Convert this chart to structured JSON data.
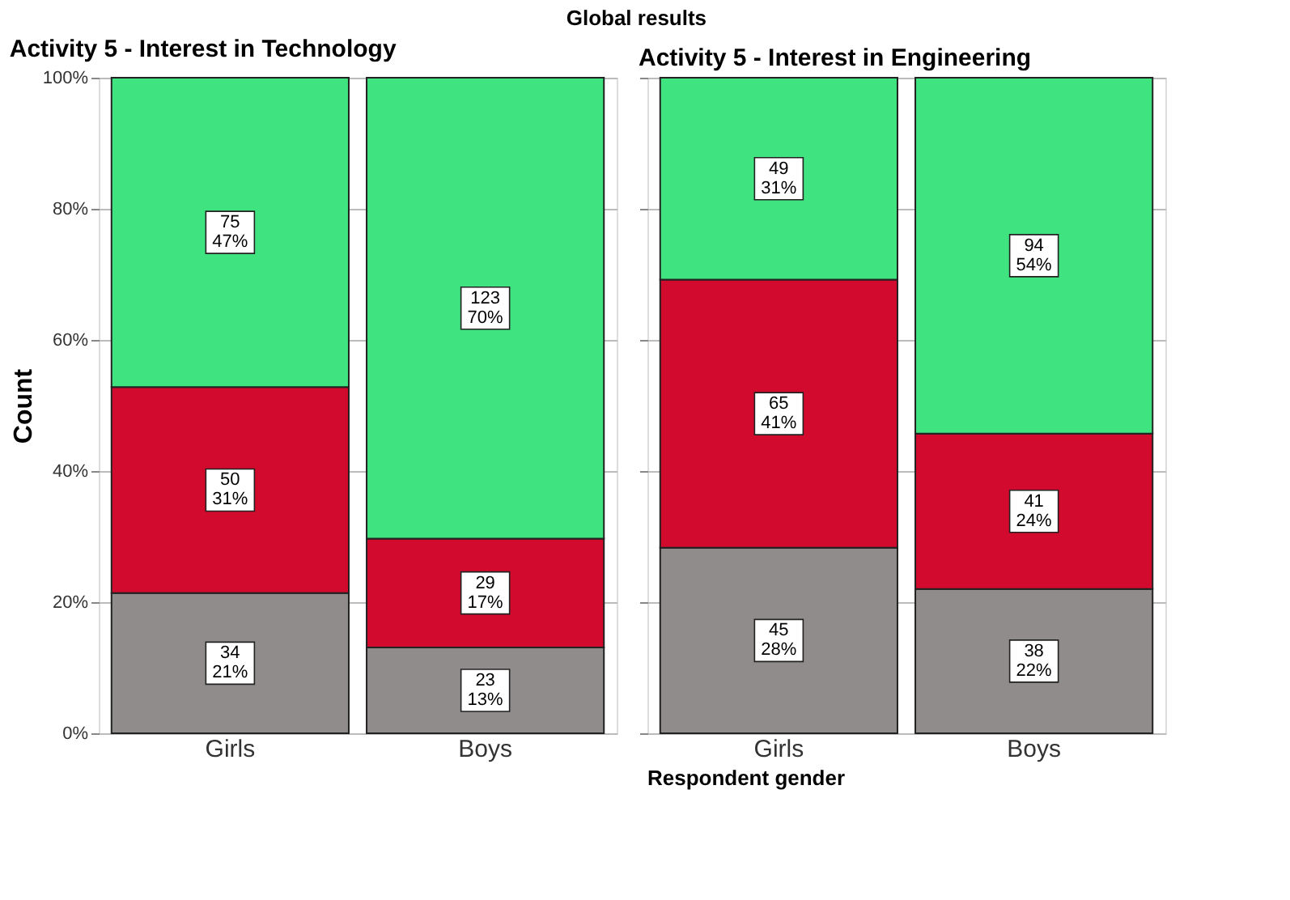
{
  "chart_data": [
    {
      "type": "bar",
      "title": "Activity 5 - Interest in Technology",
      "ylabel": "Count",
      "xlabel": "Respondent gender",
      "annotations": [
        "Global results"
      ],
      "categories": [
        "Girls",
        "Boys"
      ],
      "stacked": true,
      "grid": "y",
      "legend": false,
      "ylim": [
        0,
        100
      ],
      "yticks": [
        {
          "value": 0,
          "label": "0%"
        },
        {
          "value": 20,
          "label": "20%"
        },
        {
          "value": 40,
          "label": "40%"
        },
        {
          "value": 60,
          "label": "60%"
        },
        {
          "value": 80,
          "label": "80%"
        },
        {
          "value": 100,
          "label": "100%"
        }
      ],
      "series": [
        {
          "color": "#918c8c",
          "values": [
            21.4,
            13.1
          ],
          "value_labels": [
            "34\n21%",
            "23\n13%"
          ]
        },
        {
          "color": "#d20a2e",
          "values": [
            31.4,
            16.6
          ],
          "value_labels": [
            "50\n31%",
            "29\n17%"
          ]
        },
        {
          "color": "#3fe37f",
          "values": [
            47.2,
            70.3
          ],
          "value_labels": [
            "75\n47%",
            "123\n70%"
          ]
        }
      ]
    },
    {
      "type": "bar",
      "title": "Activity 5 - Interest in Engineering",
      "categories": [
        "Girls",
        "Boys"
      ],
      "stacked": true,
      "grid": "y",
      "legend": false,
      "tick_labels": "x",
      "ylim": [
        0,
        100
      ],
      "yticks": [
        0,
        20,
        40,
        60,
        80,
        100
      ],
      "series": [
        {
          "color": "#918c8c",
          "values": [
            28.3,
            22.0
          ],
          "value_labels": [
            "45\n28%",
            "38\n22%"
          ]
        },
        {
          "color": "#d20a2e",
          "values": [
            40.9,
            23.7
          ],
          "value_labels": [
            "65\n41%",
            "41\n24%"
          ]
        },
        {
          "color": "#3fe37f",
          "values": [
            30.8,
            54.3
          ],
          "value_labels": [
            "49\n31%",
            "94\n54%"
          ]
        }
      ]
    }
  ]
}
